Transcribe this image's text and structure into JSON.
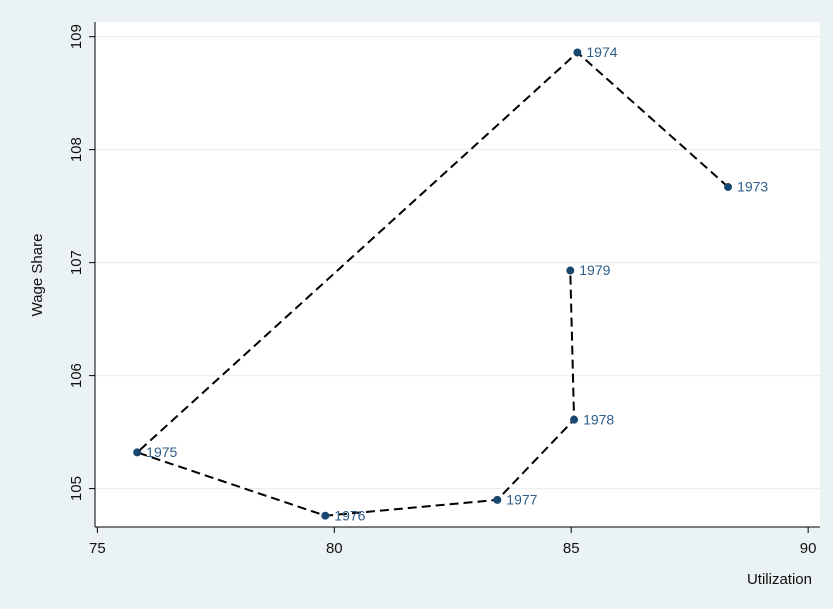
{
  "chart_data": {
    "type": "scatter",
    "x_label": "Utilization",
    "y_label": "Wage Share",
    "series": [
      {
        "color": "#1a476f",
        "x": [
          88.31,
          85.13,
          75.84,
          79.81,
          83.44,
          85.06,
          84.98
        ],
        "values": [
          107.67,
          108.86,
          105.32,
          104.76,
          104.9,
          105.61,
          106.93
        ],
        "point_labels": [
          "1973",
          "1974",
          "1975",
          "1976",
          "1977",
          "1978",
          "1979"
        ]
      }
    ],
    "xlim": [
      74.95,
      90.25
    ],
    "ylim": [
      104.66,
      109.13
    ],
    "xticks": [
      75,
      80,
      85,
      90
    ],
    "yticks": [
      105,
      106,
      107,
      108,
      109
    ],
    "grid": true
  }
}
